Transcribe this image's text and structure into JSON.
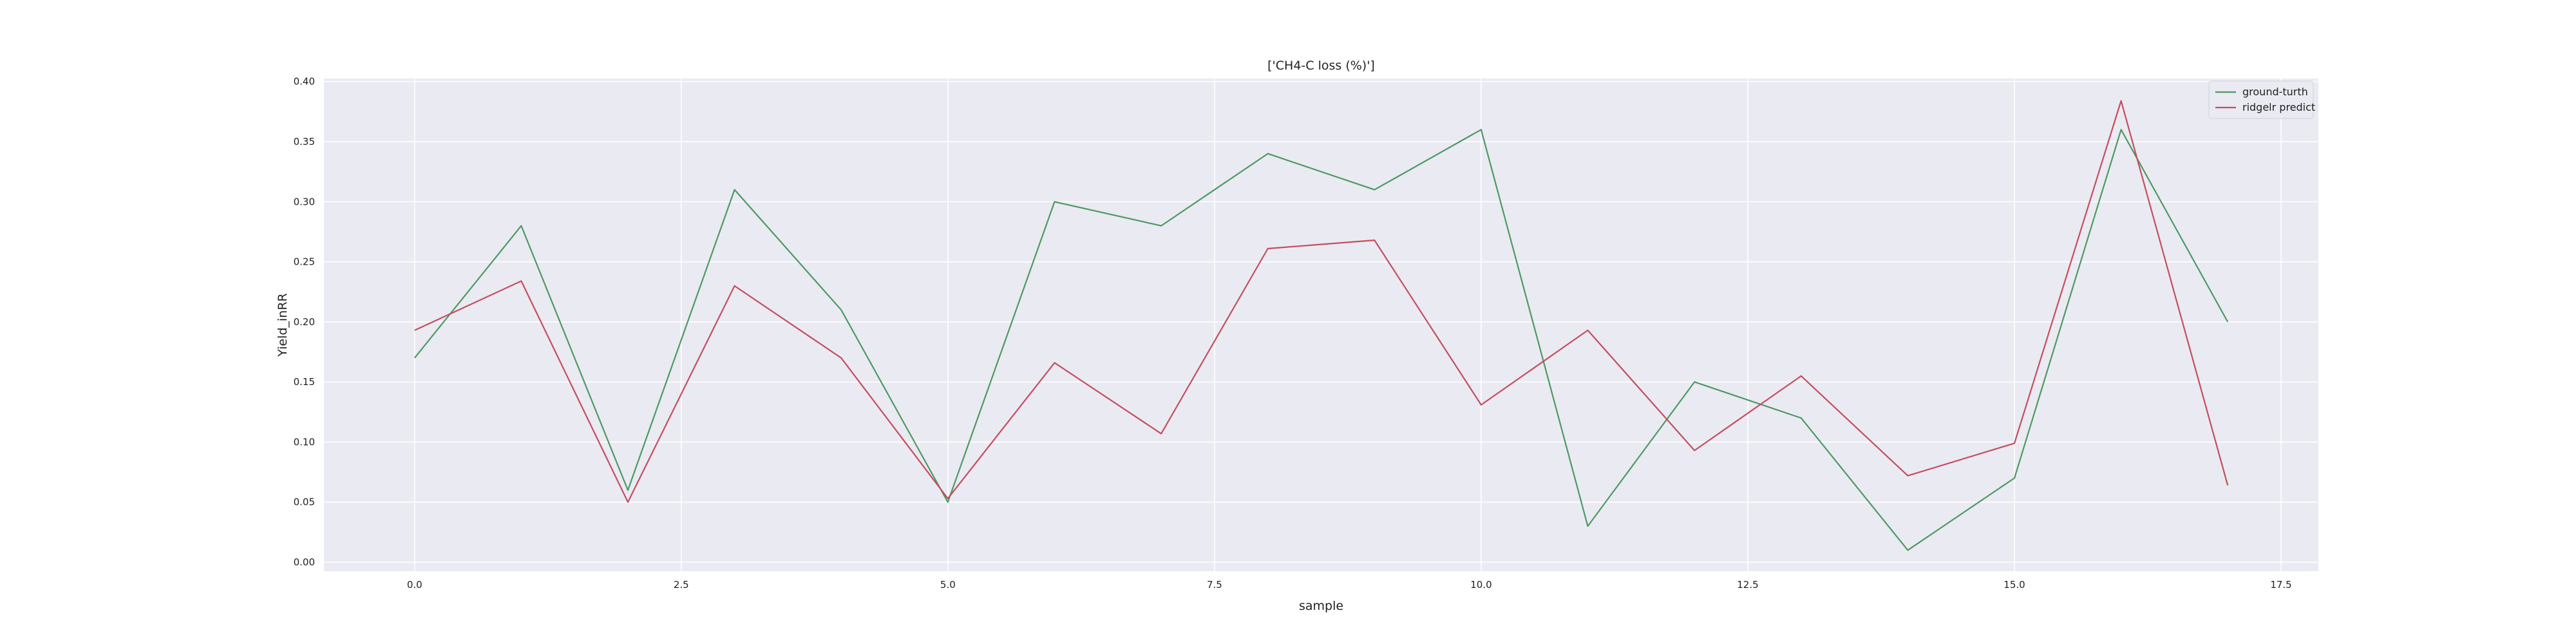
{
  "chart_data": {
    "type": "line",
    "title": "['CH4-C loss (%)']",
    "xlabel": "sample",
    "ylabel": "Yield_inRR",
    "xlim": [
      -0.85,
      17.85
    ],
    "ylim": [
      -0.0075,
      0.4025
    ],
    "xticks": [
      0.0,
      2.5,
      5.0,
      7.5,
      10.0,
      12.5,
      15.0,
      17.5
    ],
    "xtick_labels": [
      "0.0",
      "2.5",
      "5.0",
      "7.5",
      "10.0",
      "12.5",
      "15.0",
      "17.5"
    ],
    "yticks": [
      0.0,
      0.05,
      0.1,
      0.15,
      0.2,
      0.25,
      0.3,
      0.35,
      0.4
    ],
    "ytick_labels": [
      "0.00",
      "0.05",
      "0.10",
      "0.15",
      "0.20",
      "0.25",
      "0.30",
      "0.35",
      "0.40"
    ],
    "grid": true,
    "legend_position": "top-right",
    "x": [
      0,
      1,
      2,
      3,
      4,
      5,
      6,
      7,
      8,
      9,
      10,
      11,
      12,
      13,
      14,
      15,
      16,
      17
    ],
    "series": [
      {
        "name": "ground-turth",
        "color": "#4c9a62",
        "values": [
          0.17,
          0.28,
          0.06,
          0.31,
          0.21,
          0.05,
          0.3,
          0.28,
          0.34,
          0.31,
          0.36,
          0.03,
          0.15,
          0.12,
          0.01,
          0.07,
          0.36,
          0.2
        ]
      },
      {
        "name": "ridgelr predict",
        "color": "#c44e5e",
        "values": [
          0.193,
          0.234,
          0.05,
          0.23,
          0.17,
          0.053,
          0.166,
          0.107,
          0.261,
          0.268,
          0.131,
          0.193,
          0.093,
          0.155,
          0.072,
          0.099,
          0.384,
          0.064
        ]
      }
    ]
  },
  "style": {
    "plot_background": "#eaeaf2",
    "grid_color": "#ffffff"
  }
}
